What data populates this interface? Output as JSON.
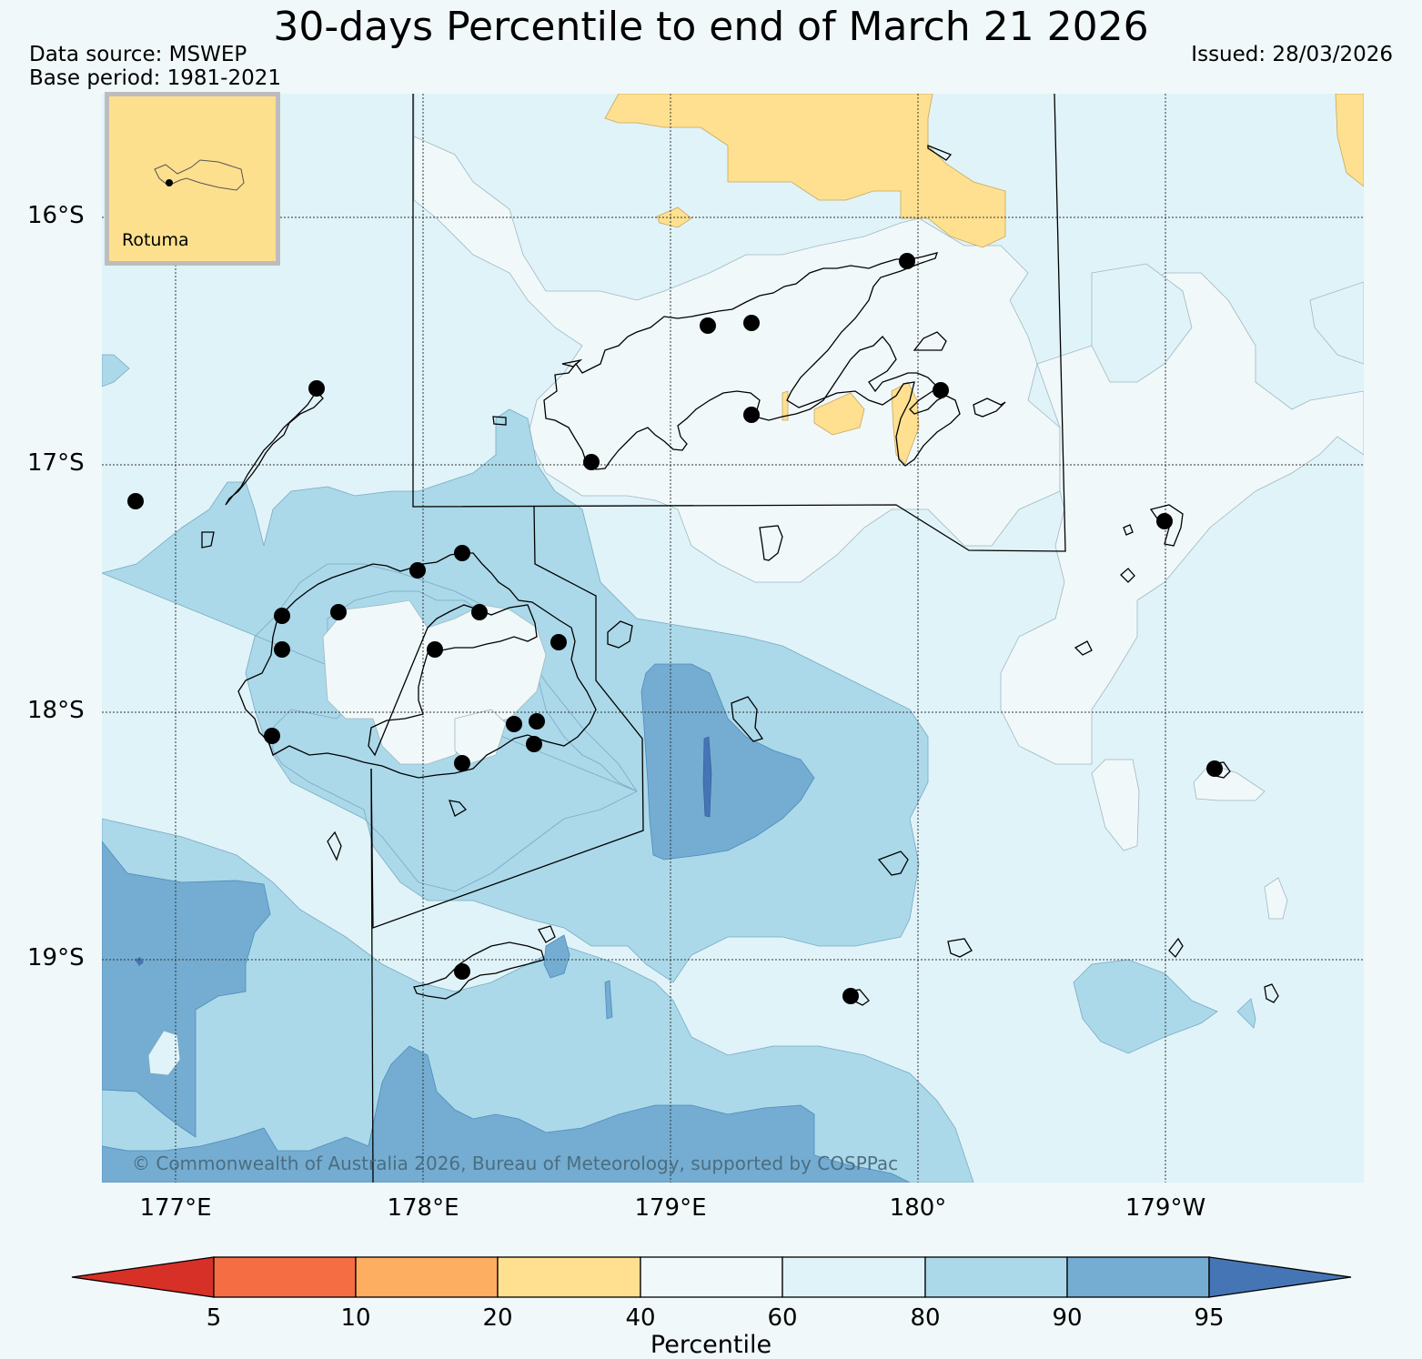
{
  "title": "30-days Percentile to end of March 21 2026",
  "data_source": "Data source: MSWEP",
  "base_period": "Base period: 1981-2021",
  "issued": "Issued: 28/03/2026",
  "copyright": "© Commonwealth of Australia 2026, Bureau of Meteorology, supported by COSPPac",
  "inset": {
    "label": "Rotuma"
  },
  "latitude_labels": [
    "16°S",
    "17°S",
    "18°S",
    "19°S"
  ],
  "longitude_labels": [
    "177°E",
    "178°E",
    "179°E",
    "180°",
    "179°W"
  ],
  "colorbar": {
    "title": "Percentile",
    "ticks": [
      "5",
      "10",
      "20",
      "40",
      "60",
      "80",
      "90",
      "95"
    ],
    "colors": {
      "below_5": "#d73027",
      "p5_10": "#f46d43",
      "p10_20": "#fdae61",
      "p20_40": "#fee090",
      "p40_60": "#f0f8fa",
      "p60_80": "#e0f3f8",
      "p80_90": "#abd9e9",
      "p90_95": "#74add1",
      "above_95": "#4575b4"
    }
  }
}
